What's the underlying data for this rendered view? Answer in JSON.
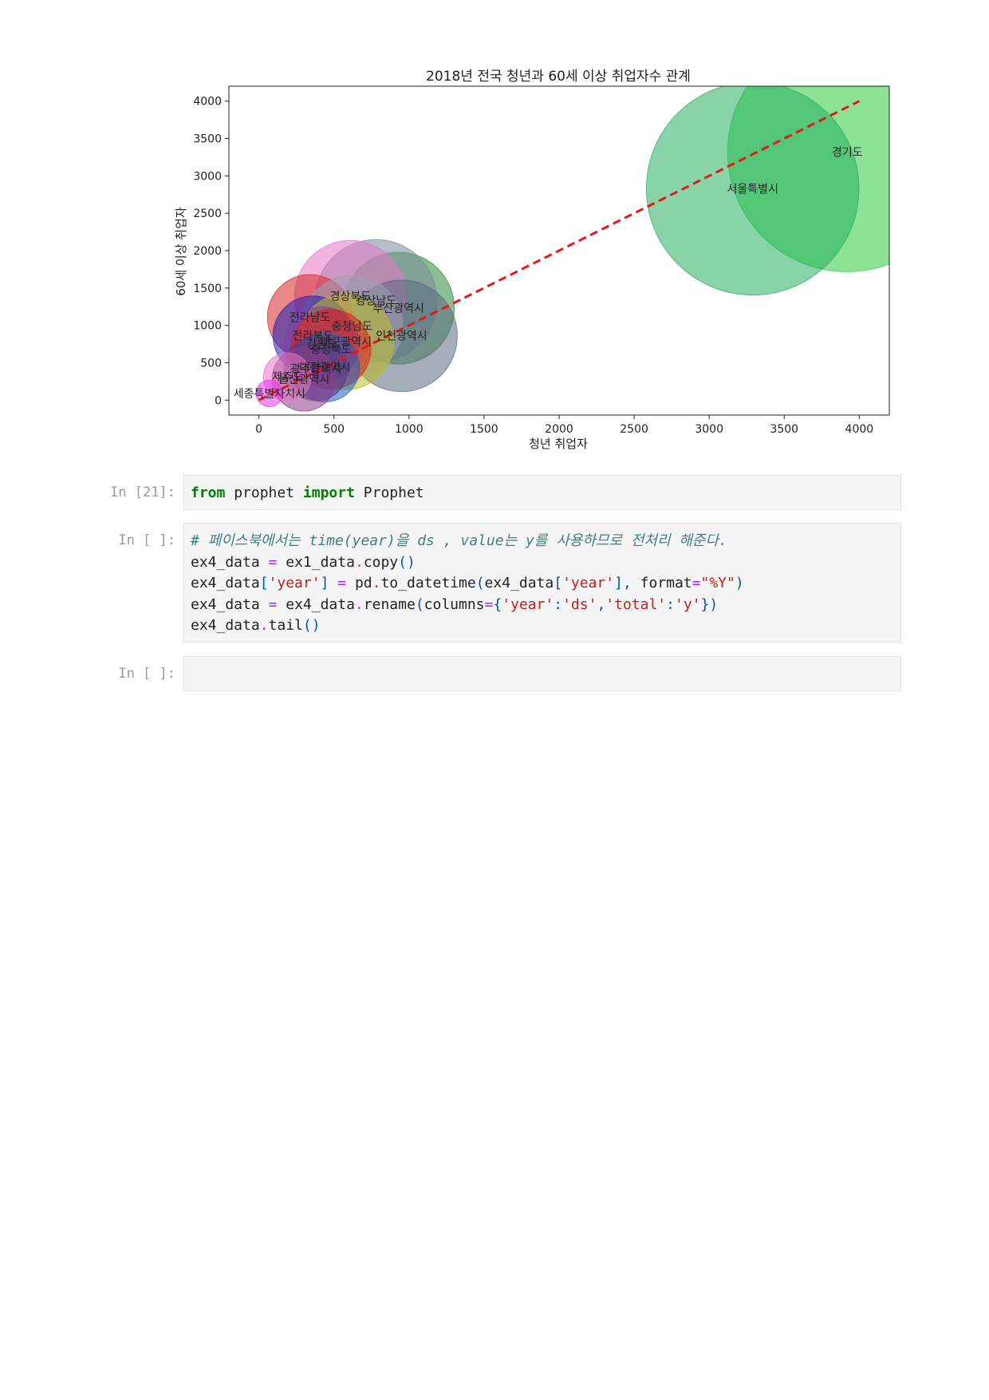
{
  "chart_data": {
    "type": "scatter",
    "title": "2018년 전국 청년과 60세 이상 취업자수 관계",
    "xlabel": "청년 취업자",
    "ylabel": "60세 이상 취업자",
    "xlim": [
      -200,
      4200
    ],
    "ylim": [
      -200,
      4200
    ],
    "xticks": [
      0,
      500,
      1000,
      1500,
      2000,
      2500,
      3000,
      3500,
      4000
    ],
    "yticks": [
      0,
      500,
      1000,
      1500,
      2000,
      2500,
      3000,
      3500,
      4000
    ],
    "trendline": {
      "x": [
        0,
        4000
      ],
      "y": [
        0,
        4000
      ],
      "color": "#e31a1c",
      "style": "dashed"
    },
    "points": [
      {
        "label": "경기도",
        "x": 3920,
        "y": 3320,
        "size": 4500,
        "color": "#2ecc40"
      },
      {
        "label": "서울특별시",
        "x": 3290,
        "y": 2830,
        "size": 4000,
        "color": "#27ae60"
      },
      {
        "label": "부산광역시",
        "x": 930,
        "y": 1230,
        "size": 2100,
        "color": "#2e8b3a"
      },
      {
        "label": "경상남도",
        "x": 780,
        "y": 1330,
        "size": 2300,
        "color": "#7a8a9a"
      },
      {
        "label": "경상북도",
        "x": 610,
        "y": 1390,
        "size": 2100,
        "color": "#e377c2"
      },
      {
        "label": "인천광역시",
        "x": 950,
        "y": 860,
        "size": 2100,
        "color": "#5a6a80"
      },
      {
        "label": "전라남도",
        "x": 340,
        "y": 1110,
        "size": 1600,
        "color": "#d62728"
      },
      {
        "label": "충청남도",
        "x": 620,
        "y": 990,
        "size": 1900,
        "color": "#9aa0b0"
      },
      {
        "label": "전라북도",
        "x": 360,
        "y": 860,
        "size": 1500,
        "color": "#1f1fb4"
      },
      {
        "label": "대구광역시",
        "x": 580,
        "y": 780,
        "size": 1800,
        "color": "#bcbd22"
      },
      {
        "label": "강원도",
        "x": 420,
        "y": 750,
        "size": 1400,
        "color": "#7b3fa0"
      },
      {
        "label": "충청북도",
        "x": 480,
        "y": 680,
        "size": 1500,
        "color": "#e31a1c"
      },
      {
        "label": "대전광역시",
        "x": 440,
        "y": 440,
        "size": 1300,
        "color": "#1f5fcc"
      },
      {
        "label": "광주광역시",
        "x": 380,
        "y": 420,
        "size": 1200,
        "color": "#5a3a7a"
      },
      {
        "label": "울산광역시",
        "x": 300,
        "y": 280,
        "size": 1200,
        "color": "#8e3a8a"
      },
      {
        "label": "제주도",
        "x": 190,
        "y": 310,
        "size": 900,
        "color": "#e377c2"
      },
      {
        "label": "세종특별자치시",
        "x": 70,
        "y": 90,
        "size": 500,
        "color": "#ee33ee"
      }
    ]
  },
  "cells": [
    {
      "prompt": "In [21]:"
    },
    {
      "prompt": "In [ ]:"
    },
    {
      "prompt": "In [ ]:"
    }
  ],
  "code": {
    "c1": {
      "kw_from": "from",
      "mod": " prophet ",
      "kw_import": "import",
      "name": " Prophet"
    },
    "c2": {
      "comment": "# 페이스북에서는 time(year)을 ds , value는 y를 사용하므로 전처리 해준다.",
      "l2a": "ex4_data ",
      "l2op": "=",
      "l2b": " ex1_data",
      "l2dot": ".",
      "l2c": "copy",
      "l2p": "()",
      "l3a": "ex4_data",
      "l3p1": "[",
      "l3s1": "'year'",
      "l3p2": "]",
      "l3sp": " ",
      "l3op": "=",
      "l3b": " pd",
      "l3dot": ".",
      "l3c": "to_datetime",
      "l3p3": "(",
      "l3d": "ex4_data",
      "l3p4": "[",
      "l3s2": "'year'",
      "l3p5": "], ",
      "l3e": "format",
      "l3op2": "=",
      "l3s3": "\"%Y\"",
      "l3p6": ")",
      "l4a": "ex4_data ",
      "l4op": "=",
      "l4b": " ex4_data",
      "l4dot": ".",
      "l4c": "rename",
      "l4p1": "(",
      "l4d": "columns",
      "l4op2": "=",
      "l4p2": "{",
      "l4s1": "'year'",
      "l4p3": ":",
      "l4s2": "'ds'",
      "l4p4": ",",
      "l4s3": "'total'",
      "l4p5": ":",
      "l4s4": "'y'",
      "l4p6": "})",
      "l5a": "ex4_data",
      "l5dot": ".",
      "l5c": "tail",
      "l5p": "()"
    }
  }
}
